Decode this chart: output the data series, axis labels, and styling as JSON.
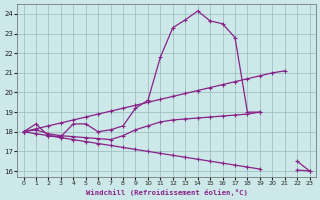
{
  "xlabel": "Windchill (Refroidissement éolien,°C)",
  "xlim": [
    -0.5,
    23.5
  ],
  "ylim": [
    15.7,
    24.5
  ],
  "yticks": [
    16,
    17,
    18,
    19,
    20,
    21,
    22,
    23,
    24
  ],
  "xticks": [
    0,
    1,
    2,
    3,
    4,
    5,
    6,
    7,
    8,
    9,
    10,
    11,
    12,
    13,
    14,
    15,
    16,
    17,
    18,
    19,
    20,
    21,
    22,
    23
  ],
  "bg_color": "#cce8e8",
  "line_color": "#882288",
  "grid_color": "#99bbbb",
  "line_width": 0.9,
  "marker": "+",
  "marker_size": 3.5,
  "lines": [
    {
      "x": [
        0,
        1,
        2,
        3,
        4,
        5,
        6,
        7,
        8,
        9,
        10,
        11,
        12,
        13,
        14,
        15,
        16,
        17,
        18,
        19,
        20,
        21,
        22,
        23
      ],
      "y": [
        18.0,
        18.4,
        17.8,
        17.75,
        18.4,
        18.4,
        18.0,
        18.1,
        18.3,
        19.2,
        19.6,
        21.8,
        23.3,
        23.7,
        24.15,
        23.65,
        23.5,
        22.8,
        19.0,
        19.0,
        null,
        null,
        16.5,
        16.0
      ]
    },
    {
      "x": [
        0,
        1,
        2,
        3,
        4,
        5,
        6,
        7,
        8,
        9,
        10,
        11,
        12,
        13,
        14,
        15,
        16,
        17,
        18,
        19,
        20,
        21,
        22,
        23
      ],
      "y": [
        18.0,
        18.15,
        18.3,
        18.45,
        18.6,
        18.75,
        18.9,
        19.05,
        19.2,
        19.35,
        19.5,
        19.65,
        19.8,
        19.95,
        20.1,
        20.25,
        20.4,
        20.55,
        20.7,
        20.85,
        21.0,
        21.1,
        null,
        null
      ]
    },
    {
      "x": [
        0,
        1,
        2,
        3,
        4,
        5,
        6,
        7,
        8,
        9,
        10,
        11,
        12,
        13,
        14,
        15,
        16,
        17,
        18,
        19,
        20,
        21,
        22,
        23
      ],
      "y": [
        18.0,
        18.1,
        17.9,
        17.8,
        17.75,
        17.7,
        17.65,
        17.6,
        17.8,
        18.1,
        18.3,
        18.5,
        18.6,
        18.65,
        18.7,
        18.75,
        18.8,
        18.85,
        18.9,
        19.0,
        null,
        null,
        null,
        null
      ]
    },
    {
      "x": [
        0,
        1,
        2,
        3,
        4,
        5,
        6,
        7,
        8,
        9,
        10,
        11,
        12,
        13,
        14,
        15,
        16,
        17,
        18,
        19,
        20,
        21,
        22,
        23
      ],
      "y": [
        18.0,
        17.9,
        17.8,
        17.7,
        17.6,
        17.5,
        17.4,
        17.3,
        17.2,
        17.1,
        17.0,
        16.9,
        16.8,
        16.7,
        16.6,
        16.5,
        16.4,
        16.3,
        16.2,
        16.1,
        null,
        null,
        16.05,
        16.0
      ]
    }
  ]
}
